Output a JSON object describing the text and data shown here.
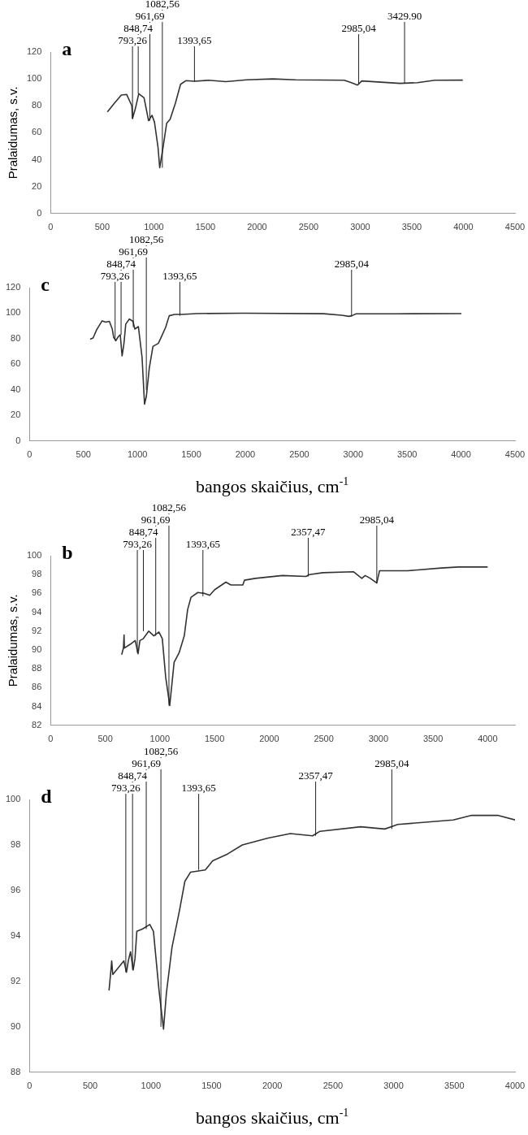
{
  "chart_data": [
    {
      "type": "line",
      "title": "a",
      "ylabel": "Pralaidumas, s.v.",
      "xlim": [
        0,
        4500
      ],
      "xticks": [
        0,
        500,
        1000,
        1500,
        2000,
        2500,
        3000,
        3500,
        4000,
        4500
      ],
      "ylim": [
        0,
        120
      ],
      "yticks": [
        0,
        20,
        40,
        60,
        80,
        100,
        120
      ],
      "grid": false,
      "x": [
        550,
        618,
        685,
        736,
        787,
        793,
        820,
        854,
        905,
        949,
        982,
        1006,
        1040,
        1057,
        1090,
        1124,
        1158,
        1209,
        1259,
        1310,
        1394,
        1530,
        1698,
        1900,
        2154,
        2373,
        2846,
        2914,
        2974,
        3015,
        3386,
        3555,
        3724,
        3994
      ],
      "series": [
        {
          "color": "#333333",
          "values": [
            75.5,
            82,
            88,
            88.5,
            80,
            70.5,
            77.7,
            89,
            86,
            69,
            73,
            68,
            49.5,
            34,
            49.5,
            67,
            70,
            82,
            96,
            98.7,
            98.3,
            99,
            98,
            99.3,
            100,
            99.3,
            99,
            97.2,
            95.4,
            98.5,
            96.7,
            97.2,
            99,
            99.1
          ]
        }
      ],
      "annotations": [
        {
          "text": "793,26",
          "x": 793.26,
          "y": 70.5
        },
        {
          "text": "848,74",
          "x": 848.74,
          "y": 89
        },
        {
          "text": "961,69",
          "x": 961.69,
          "y": 69
        },
        {
          "text": "1082,56",
          "x": 1082.56,
          "y": 34
        },
        {
          "text": "1393,65",
          "x": 1393.65,
          "y": 98
        },
        {
          "text": "2985,04",
          "x": 2985.04,
          "y": 96
        },
        {
          "text": "3429.90",
          "x": 3429.9,
          "y": 97
        }
      ]
    },
    {
      "type": "line",
      "title": "c",
      "xlabel": "bangos skaičius, cm$^{-1}$",
      "xlim": [
        0,
        4500
      ],
      "xticks": [
        0,
        500,
        1000,
        1500,
        2000,
        2500,
        3000,
        3500,
        4000,
        4500
      ],
      "ylim": [
        0,
        120
      ],
      "yticks": [
        0,
        20,
        40,
        60,
        80,
        100,
        120
      ],
      "grid": false,
      "x": [
        562,
        589,
        622,
        673,
        706,
        740,
        767,
        780,
        800,
        824,
        841,
        858,
        875,
        892,
        925,
        959,
        976,
        1009,
        1043,
        1066,
        1083,
        1110,
        1144,
        1194,
        1228,
        1262,
        1295,
        1346,
        1413,
        1547,
        1985,
        2725,
        2893,
        2960,
        2987,
        3027,
        3397,
        4003
      ],
      "series": [
        {
          "color": "#333333",
          "values": [
            79.6,
            80.6,
            87,
            94,
            93,
            93.6,
            87.6,
            81,
            78.5,
            81.8,
            83,
            66.6,
            76,
            91.5,
            95.4,
            93.6,
            87.6,
            89.5,
            65.5,
            28.8,
            35,
            57,
            74,
            76.4,
            82.6,
            89,
            98,
            99,
            99,
            99.7,
            100,
            99.6,
            98.4,
            97.5,
            98,
            99.5,
            99.5,
            99.7
          ]
        }
      ],
      "annotations": [
        {
          "text": "793,26",
          "x": 793.26,
          "y": 78.5
        },
        {
          "text": "848,74",
          "x": 848.74,
          "y": 83
        },
        {
          "text": "961,69",
          "x": 961.69,
          "y": 89
        },
        {
          "text": "1082,56",
          "x": 1082.56,
          "y": 40
        },
        {
          "text": "1393,65",
          "x": 1393.65,
          "y": 98
        },
        {
          "text": "2985,04",
          "x": 2985.04,
          "y": 97.5
        }
      ]
    },
    {
      "type": "line",
      "title": "b",
      "ylabel": "Pralaidumas, s.v.",
      "xlim": [
        0,
        4250
      ],
      "xticks": [
        0,
        500,
        1000,
        1500,
        2000,
        2500,
        3000,
        3500,
        4000
      ],
      "ylim": [
        82,
        100
      ],
      "yticks": [
        82,
        84,
        86,
        88,
        90,
        92,
        94,
        96,
        98,
        100
      ],
      "grid": false,
      "x": [
        650,
        666,
        672,
        675,
        728,
        774,
        800,
        817,
        848,
        898,
        944,
        991,
        1022,
        1053,
        1090,
        1130,
        1176,
        1223,
        1254,
        1285,
        1347,
        1409,
        1455,
        1502,
        1604,
        1650,
        1759,
        1774,
        1873,
        2121,
        2337,
        2368,
        2492,
        2771,
        2848,
        2879,
        2926,
        2985,
        3010,
        3266,
        3576,
        3731,
        4000
      ],
      "series": [
        {
          "color": "#333333",
          "values": [
            89.5,
            90.2,
            91.6,
            90.2,
            90.6,
            91,
            89.6,
            91,
            91.2,
            92,
            91.5,
            91.9,
            91.2,
            87.1,
            84.1,
            88.7,
            89.7,
            91.5,
            94.3,
            95.6,
            96.1,
            96,
            95.8,
            96.4,
            97.2,
            96.9,
            96.9,
            97.4,
            97.6,
            97.9,
            97.8,
            98,
            98.2,
            98.3,
            97.6,
            97.9,
            97.6,
            97.1,
            98.4,
            98.4,
            98.7,
            98.8,
            98.8
          ]
        }
      ],
      "annotations": [
        {
          "text": "793,26",
          "x": 793.26,
          "y": 89.7
        },
        {
          "text": "848,74",
          "x": 848.74,
          "y": 92
        },
        {
          "text": "961,69",
          "x": 961.69,
          "y": 91.5
        },
        {
          "text": "1082,56",
          "x": 1082.56,
          "y": 84.1
        },
        {
          "text": "1393,65",
          "x": 1393.65,
          "y": 95.7
        },
        {
          "text": "2357,47",
          "x": 2357.47,
          "y": 97.8
        },
        {
          "text": "2985,04",
          "x": 2985.04,
          "y": 97.1
        }
      ]
    },
    {
      "type": "line",
      "title": "d",
      "xlabel": "bangos skaičius, cm$^{-1}$",
      "xlim": [
        0,
        4000
      ],
      "xticks": [
        0,
        500,
        1000,
        1500,
        2000,
        2500,
        3000,
        3500,
        4000
      ],
      "ylim": [
        88,
        100
      ],
      "yticks": [
        88,
        90,
        92,
        94,
        96,
        98,
        100
      ],
      "grid": false,
      "x": [
        655,
        671,
        677,
        686,
        732,
        777,
        799,
        814,
        832,
        854,
        869,
        884,
        930,
        991,
        1021,
        1067,
        1104,
        1128,
        1174,
        1235,
        1280,
        1326,
        1448,
        1509,
        1631,
        1753,
        1966,
        2149,
        2332,
        2393,
        2729,
        2927,
        3034,
        3491,
        3643,
        3857,
        4000
      ],
      "series": [
        {
          "color": "#333333",
          "values": [
            91.6,
            92.5,
            92.9,
            92.3,
            92.6,
            92.9,
            92.4,
            92.9,
            93.3,
            92.5,
            93,
            94.2,
            94.3,
            94.5,
            94.2,
            91.6,
            89.9,
            91.5,
            93.5,
            95.1,
            96.4,
            96.8,
            96.9,
            97.3,
            97.6,
            98,
            98.3,
            98.5,
            98.4,
            98.6,
            98.8,
            98.7,
            98.9,
            99.1,
            99.3,
            99.3,
            99.1
          ]
        }
      ],
      "annotations": [
        {
          "text": "793,26",
          "x": 793.26,
          "y": 92.4
        },
        {
          "text": "848,74",
          "x": 848.74,
          "y": 92.5
        },
        {
          "text": "961,69",
          "x": 961.69,
          "y": 94.3
        },
        {
          "text": "1082,56",
          "x": 1082.56,
          "y": 90
        },
        {
          "text": "1393,65",
          "x": 1393.65,
          "y": 96.9
        },
        {
          "text": "2357,47",
          "x": 2357.47,
          "y": 98.4
        },
        {
          "text": "2985,04",
          "x": 2985.04,
          "y": 98.7
        }
      ]
    }
  ]
}
